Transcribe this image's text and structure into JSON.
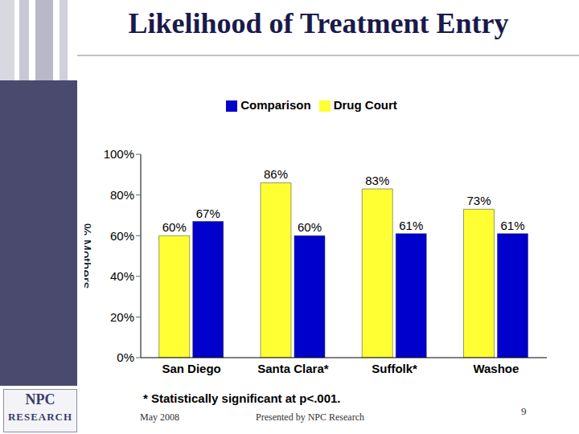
{
  "chart_data": {
    "type": "bar",
    "title": "Likelihood of Treatment Entry",
    "y_label": "% Mothers",
    "categories": [
      "San Diego",
      "Santa Clara*",
      "Suffolk*",
      "Washoe"
    ],
    "series": [
      {
        "name": "Drug Court",
        "color": "#ffff33",
        "values": [
          60,
          86,
          83,
          73
        ],
        "value_labels": [
          "60%",
          "86%",
          "83%",
          "73%"
        ]
      },
      {
        "name": "Comparison",
        "color": "#0000cc",
        "values": [
          67,
          60,
          61,
          61
        ],
        "value_labels": [
          "67%",
          "60%",
          "61%",
          "61%"
        ]
      }
    ],
    "ylim": [
      0,
      100
    ],
    "yticks": [
      {
        "value": 0,
        "label": "0%"
      },
      {
        "value": 20,
        "label": "20%"
      },
      {
        "value": 40,
        "label": "40%"
      },
      {
        "value": 60,
        "label": "60%"
      },
      {
        "value": 80,
        "label": "80%"
      },
      {
        "value": 100,
        "label": "100%"
      }
    ],
    "grid": false,
    "legend": "top",
    "data_labels": true,
    "annotations": [
      "* Statistically significant at p<.001."
    ]
  },
  "footer": {
    "date": "May 2008",
    "presenter": "Presented by NPC Research",
    "page": 9,
    "logo": "NPC RESEARCH"
  }
}
